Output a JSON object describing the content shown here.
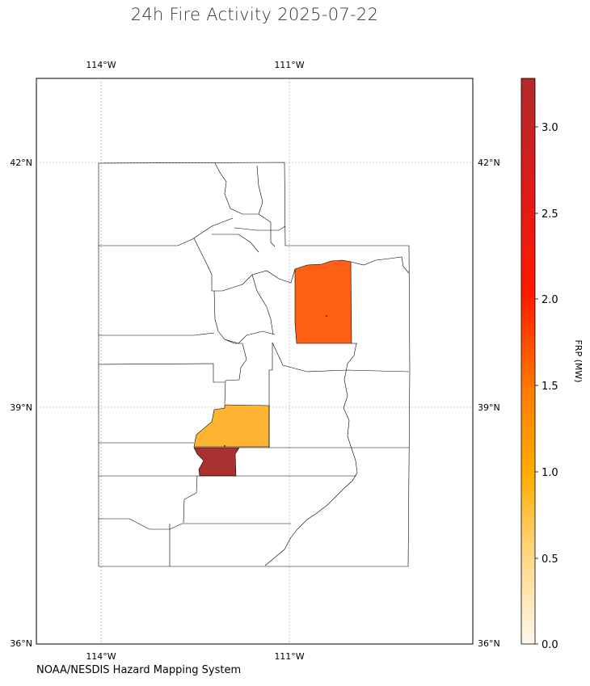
{
  "title": "24h Fire Activity 2025-07-22",
  "credit": "NOAA/NESDIS Hazard Mapping System",
  "longitude_labels": [
    "114°W",
    "111°W"
  ],
  "latitude_labels": [
    "42°N",
    "39°N",
    "36°N"
  ],
  "colorbar": {
    "label": "FRP (MW)",
    "ticks": [
      "0.0",
      "0.5",
      "1.0",
      "1.5",
      "2.0",
      "2.5",
      "3.0"
    ],
    "colors": [
      "#fff7ea",
      "#ffd98a",
      "#ffad00",
      "#ff7b00",
      "#ff1a00",
      "#e01a1a",
      "#b02a2a"
    ]
  },
  "fire_counties": [
    {
      "frp_mw": 1.55,
      "color": "#ff5f13"
    },
    {
      "frp_mw": 0.9,
      "color": "#ffb433"
    },
    {
      "frp_mw": 3.3,
      "color": "#ab3131"
    }
  ]
}
